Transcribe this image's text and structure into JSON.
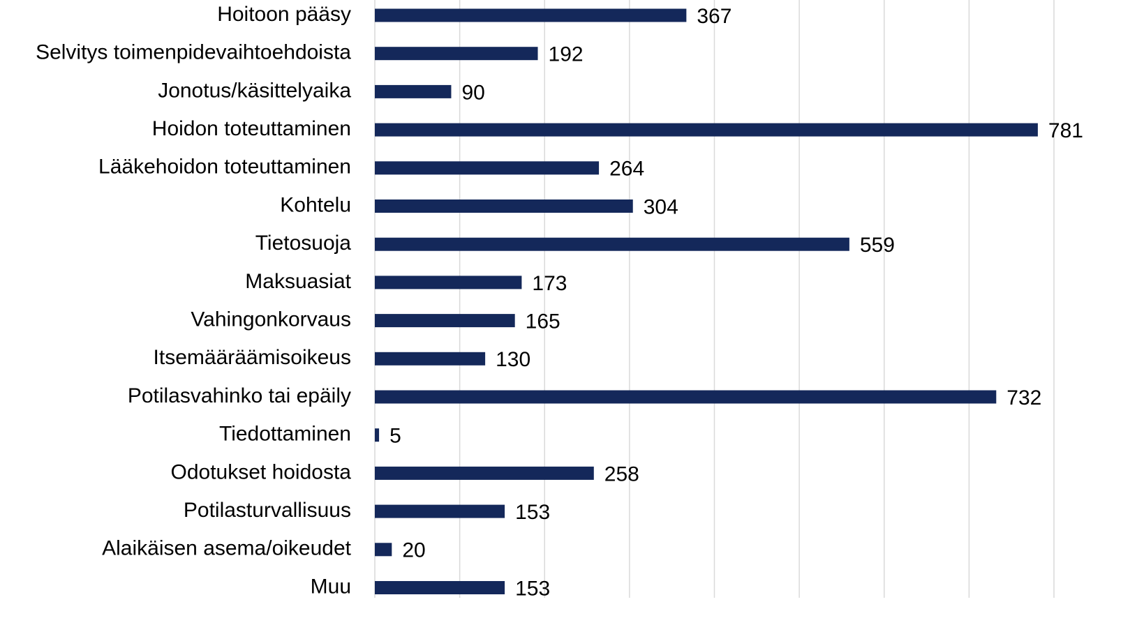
{
  "chart_data": {
    "type": "bar",
    "orientation": "horizontal",
    "categories": [
      "Hoitoon pääsy",
      "Selvitys toimenpidevaihtoehdoista",
      "Jonotus/käsittelyaika",
      "Hoidon toteuttaminen",
      "Lääkehoidon toteuttaminen",
      "Kohtelu",
      "Tietosuoja",
      "Maksuasiat",
      "Vahingonkorvaus",
      "Itsemääräämisoikeus",
      "Potilasvahinko tai epäily",
      "Tiedottaminen",
      "Odotukset hoidosta",
      "Potilasturvallisuus",
      "Alaikäisen asema/oikeudet",
      "Muu"
    ],
    "values": [
      367,
      192,
      90,
      781,
      264,
      304,
      559,
      173,
      165,
      130,
      732,
      5,
      258,
      153,
      20,
      153
    ],
    "color": "#14285a",
    "xlim": [
      0,
      800
    ],
    "xticks": [
      0,
      100,
      200,
      300,
      400,
      500,
      600,
      700,
      800
    ],
    "grid": true
  }
}
